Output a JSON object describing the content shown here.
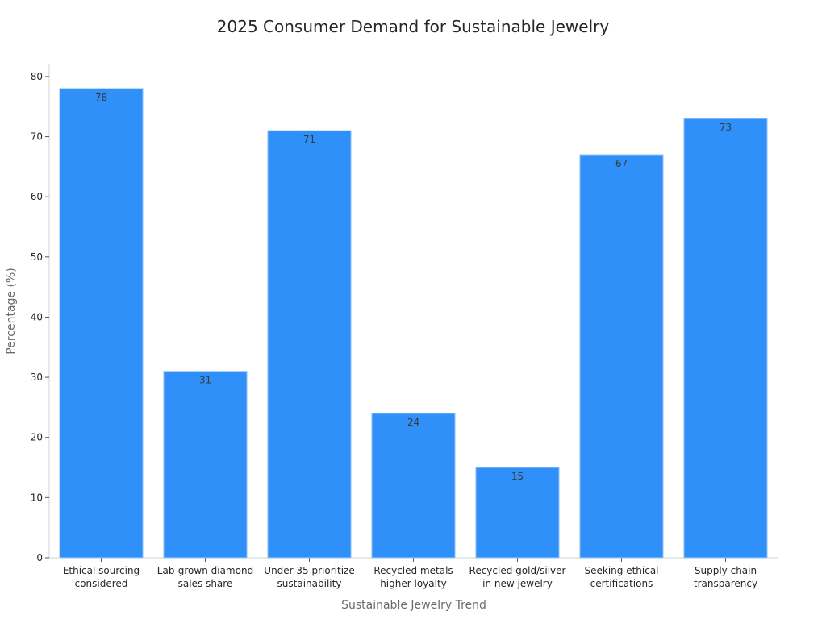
{
  "chart_data": {
    "type": "bar",
    "title": "2025 Consumer Demand for Sustainable Jewelry",
    "xlabel": "Sustainable Jewelry Trend",
    "ylabel": "Percentage (%)",
    "categories": [
      [
        "Ethical sourcing",
        "considered"
      ],
      [
        "Lab-grown diamond",
        "sales share"
      ],
      [
        "Under 35 prioritize",
        "sustainability"
      ],
      [
        "Recycled metals",
        "higher loyalty"
      ],
      [
        "Recycled gold/silver",
        "in new jewelry"
      ],
      [
        "Seeking ethical",
        "certifications"
      ],
      [
        "Supply chain",
        "transparency"
      ]
    ],
    "values": [
      78,
      31,
      71,
      24,
      15,
      67,
      73
    ],
    "ylim": [
      0,
      82
    ],
    "yticks": [
      0,
      10,
      20,
      30,
      40,
      50,
      60,
      70,
      80
    ],
    "grid": false,
    "legend": "none",
    "bar_color": "#2e90f8",
    "bar_edge_color": "#9ec9f7"
  }
}
